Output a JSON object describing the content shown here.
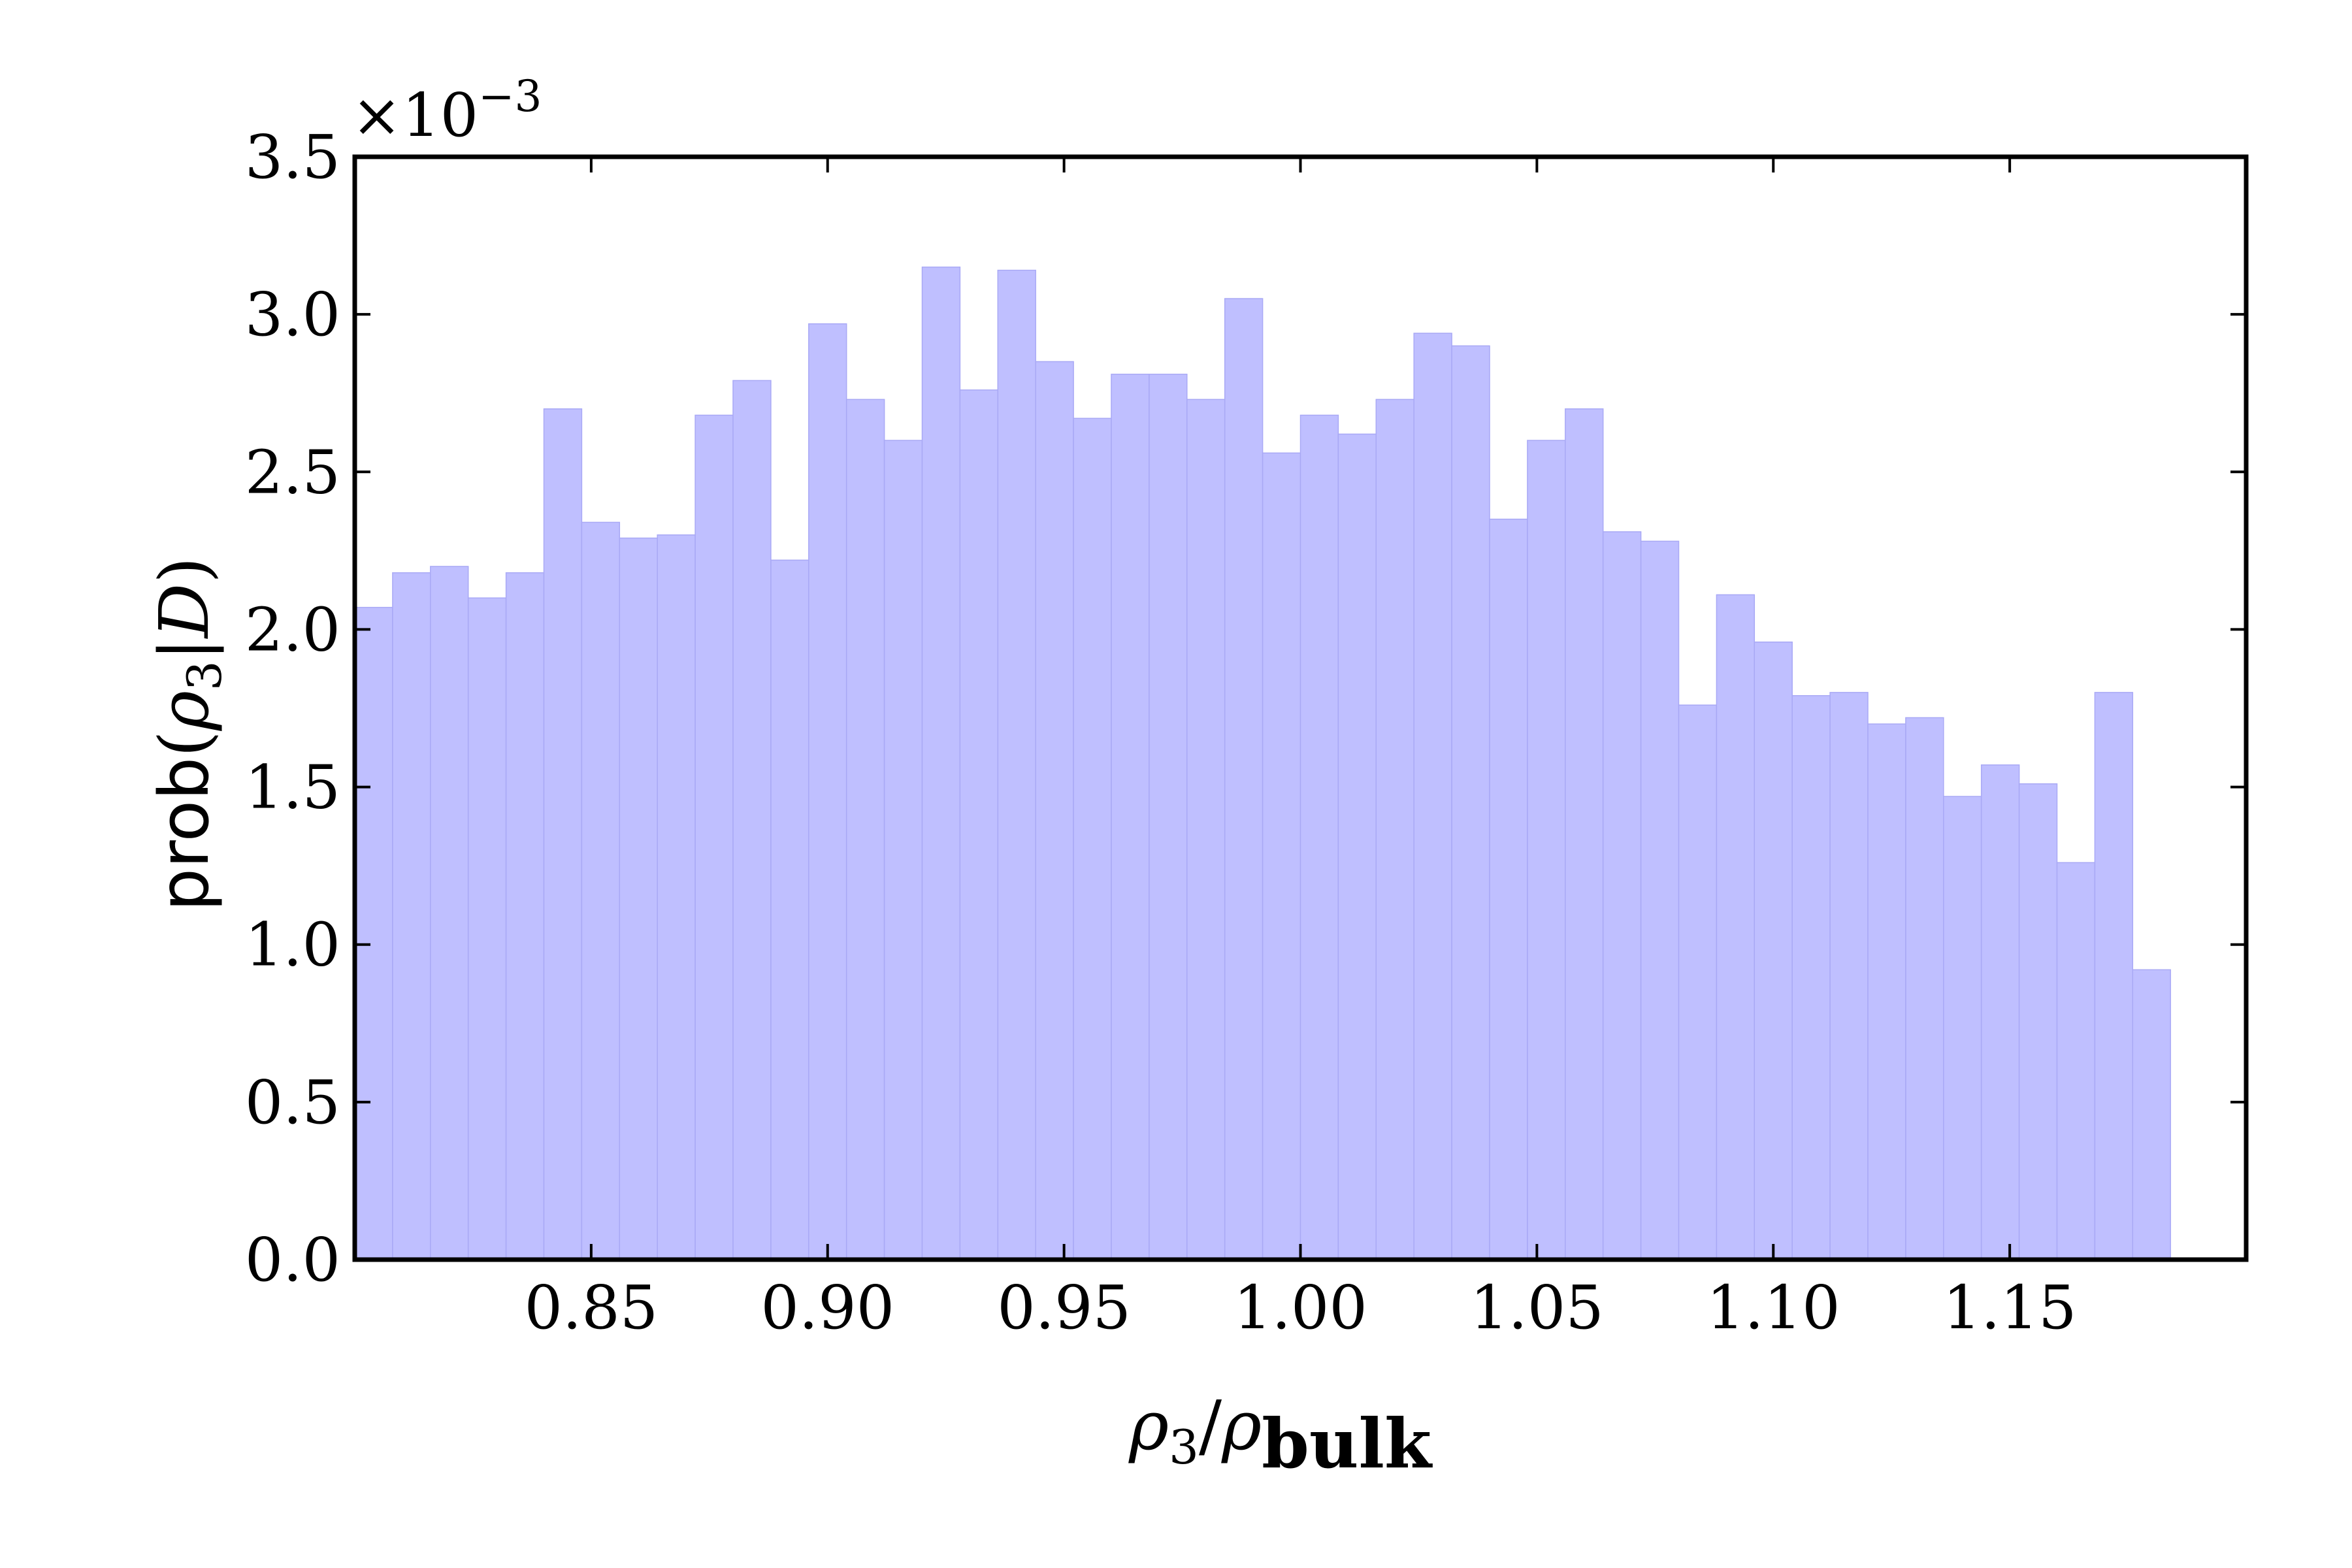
{
  "chart_data": {
    "type": "bar",
    "subtype": "histogram",
    "bin_start": 0.8,
    "bin_width": 0.008,
    "values": [
      2.07,
      2.18,
      2.2,
      2.1,
      2.18,
      2.7,
      2.34,
      2.29,
      2.3,
      2.68,
      2.79,
      2.22,
      2.97,
      2.73,
      2.6,
      3.15,
      2.76,
      3.14,
      2.85,
      2.67,
      2.81,
      2.81,
      2.73,
      3.05,
      2.56,
      2.68,
      2.62,
      2.73,
      2.94,
      2.9,
      2.35,
      2.6,
      2.7,
      2.31,
      2.28,
      1.76,
      2.11,
      1.96,
      1.79,
      1.8,
      1.7,
      1.72,
      1.47,
      1.57,
      1.51,
      1.26,
      1.8,
      0.92
    ],
    "xlim": [
      0.8,
      1.2
    ],
    "ylim": [
      0,
      3.5
    ],
    "x_ticks": [
      0.85,
      0.9,
      0.95,
      1.0,
      1.05,
      1.1,
      1.15
    ],
    "x_tick_labels": [
      "0.85",
      "0.90",
      "0.95",
      "1.00",
      "1.05",
      "1.10",
      "1.15"
    ],
    "y_ticks": [
      0.0,
      0.5,
      1.0,
      1.5,
      2.0,
      2.5,
      3.0,
      3.5
    ],
    "y_tick_labels": [
      "0.0",
      "0.5",
      "1.0",
      "1.5",
      "2.0",
      "2.5",
      "3.0",
      "3.5"
    ],
    "y_multiplier": {
      "base": "×10",
      "exponent": "−3"
    },
    "xlabel": {
      "rho": "ρ",
      "sub": "3",
      "slash": "/",
      "rho2": "ρ",
      "bulk": "bulk"
    },
    "ylabel": {
      "prob": "prob",
      "open": "(",
      "rho": "ρ",
      "sub": "3",
      "bar": "|",
      "D": "D",
      "close": ")"
    },
    "grid": false,
    "colors": {
      "bar": "#bfbfff",
      "bar_edge": "#a9a9f5",
      "axis": "#000000"
    }
  }
}
